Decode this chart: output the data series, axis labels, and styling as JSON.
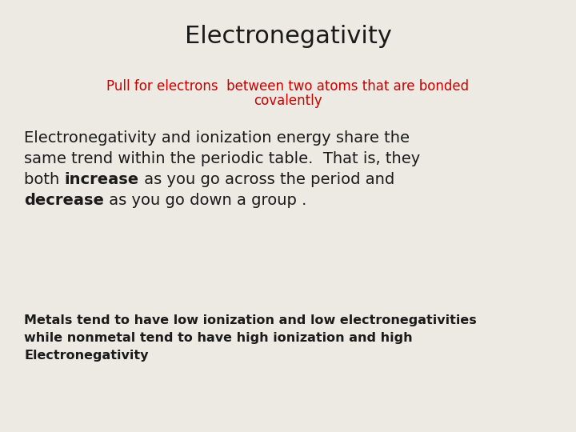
{
  "background_color": "#eceae3",
  "title": "Electronegativity",
  "title_color": "#1a1a1a",
  "title_fontsize": 22,
  "subtitle_line1": "Pull for electrons  between two atoms that are bonded",
  "subtitle_line2": "covalently",
  "subtitle_color": "#cc0000",
  "subtitle_fontsize": 12,
  "line1": "Electronegativity and ionization energy share the",
  "line2": "same trend within the periodic table.  That is, they",
  "line3_pre": "both ",
  "line3_bold": "increase",
  "line3_post": " as you go across the period and",
  "line4_bold": "decrease",
  "line4_post": " as you go down a group .",
  "para1_fontsize": 14,
  "para2_line1": "Metals tend to have low ionization and low electronegativities",
  "para2_line2": "while nonmetal tend to have high ionization and high",
  "para2_line3": "Electronegativity",
  "para2_fontsize": 11.5,
  "text_color": "#1a1a1a"
}
